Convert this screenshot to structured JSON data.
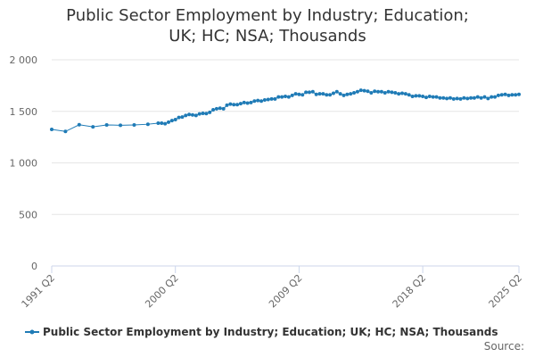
{
  "chart_data": {
    "type": "line",
    "title": "Public Sector Employment by Industry; Education; UK; HC; NSA; Thousands",
    "source": "Source:",
    "x": [
      "1991 Q2",
      "1992 Q2",
      "1993 Q2",
      "1994 Q2",
      "1995 Q2",
      "1996 Q2",
      "1997 Q2",
      "1998 Q2",
      "1999 Q1",
      "1999 Q2",
      "1999 Q3",
      "1999 Q4",
      "2000 Q1",
      "2000 Q2",
      "2000 Q3",
      "2000 Q4",
      "2001 Q1",
      "2001 Q2",
      "2001 Q3",
      "2001 Q4",
      "2002 Q1",
      "2002 Q2",
      "2002 Q3",
      "2002 Q4",
      "2003 Q1",
      "2003 Q2",
      "2003 Q3",
      "2003 Q4",
      "2004 Q1",
      "2004 Q2",
      "2004 Q3",
      "2004 Q4",
      "2005 Q1",
      "2005 Q2",
      "2005 Q3",
      "2005 Q4",
      "2006 Q1",
      "2006 Q2",
      "2006 Q3",
      "2006 Q4",
      "2007 Q1",
      "2007 Q2",
      "2007 Q3",
      "2007 Q4",
      "2008 Q1",
      "2008 Q2",
      "2008 Q3",
      "2008 Q4",
      "2009 Q1",
      "2009 Q2",
      "2009 Q3",
      "2009 Q4",
      "2010 Q1",
      "2010 Q2",
      "2010 Q3",
      "2010 Q4",
      "2011 Q1",
      "2011 Q2",
      "2011 Q3",
      "2011 Q4",
      "2012 Q1",
      "2012 Q2",
      "2012 Q3",
      "2012 Q4",
      "2013 Q1",
      "2013 Q2",
      "2013 Q3",
      "2013 Q4",
      "2014 Q1",
      "2014 Q2",
      "2014 Q3",
      "2014 Q4",
      "2015 Q1",
      "2015 Q2",
      "2015 Q3",
      "2015 Q4",
      "2016 Q1",
      "2016 Q2",
      "2016 Q3",
      "2016 Q4",
      "2017 Q1",
      "2017 Q2",
      "2017 Q3",
      "2017 Q4",
      "2018 Q1",
      "2018 Q2",
      "2018 Q3",
      "2018 Q4",
      "2019 Q1",
      "2019 Q2",
      "2019 Q3",
      "2019 Q4",
      "2020 Q1",
      "2020 Q2",
      "2020 Q3",
      "2020 Q4",
      "2021 Q1",
      "2021 Q2",
      "2021 Q3",
      "2021 Q4",
      "2022 Q1",
      "2022 Q2",
      "2022 Q3",
      "2022 Q4",
      "2023 Q1",
      "2023 Q2",
      "2023 Q3",
      "2023 Q4",
      "2024 Q1",
      "2024 Q2",
      "2024 Q3",
      "2024 Q4",
      "2025 Q1",
      "2025 Q2"
    ],
    "series": [
      {
        "name": "Public Sector Employment by Industry; Education; UK; HC; NSA; Thousands",
        "color": "#1f7bb6",
        "values": [
          1325,
          1305,
          1370,
          1350,
          1368,
          1365,
          1368,
          1375,
          1385,
          1385,
          1380,
          1395,
          1410,
          1420,
          1440,
          1445,
          1460,
          1470,
          1465,
          1460,
          1475,
          1480,
          1478,
          1490,
          1515,
          1525,
          1530,
          1525,
          1560,
          1570,
          1565,
          1565,
          1575,
          1585,
          1580,
          1585,
          1600,
          1605,
          1600,
          1610,
          1615,
          1620,
          1620,
          1640,
          1640,
          1645,
          1640,
          1655,
          1670,
          1665,
          1660,
          1685,
          1685,
          1690,
          1665,
          1670,
          1670,
          1660,
          1660,
          1675,
          1690,
          1670,
          1655,
          1665,
          1670,
          1680,
          1690,
          1705,
          1700,
          1695,
          1680,
          1695,
          1690,
          1690,
          1680,
          1690,
          1685,
          1680,
          1670,
          1675,
          1670,
          1660,
          1645,
          1650,
          1650,
          1645,
          1635,
          1645,
          1640,
          1640,
          1630,
          1630,
          1625,
          1630,
          1620,
          1625,
          1620,
          1630,
          1625,
          1630,
          1630,
          1640,
          1630,
          1640,
          1625,
          1640,
          1640,
          1655,
          1660,
          1665,
          1655,
          1660,
          1660,
          1665
        ]
      }
    ],
    "xticks": [
      "1991 Q2",
      "2000 Q2",
      "2009 Q2",
      "2018 Q2",
      "2025 Q2"
    ],
    "ylim": [
      0,
      2000
    ],
    "yticks": [
      0,
      500,
      {
        "value": 1000,
        "label": "1 000"
      },
      {
        "value": 1500,
        "label": "1 500"
      },
      {
        "value": 2000,
        "label": "2 000"
      }
    ],
    "grid": true,
    "legend": "bottom"
  }
}
